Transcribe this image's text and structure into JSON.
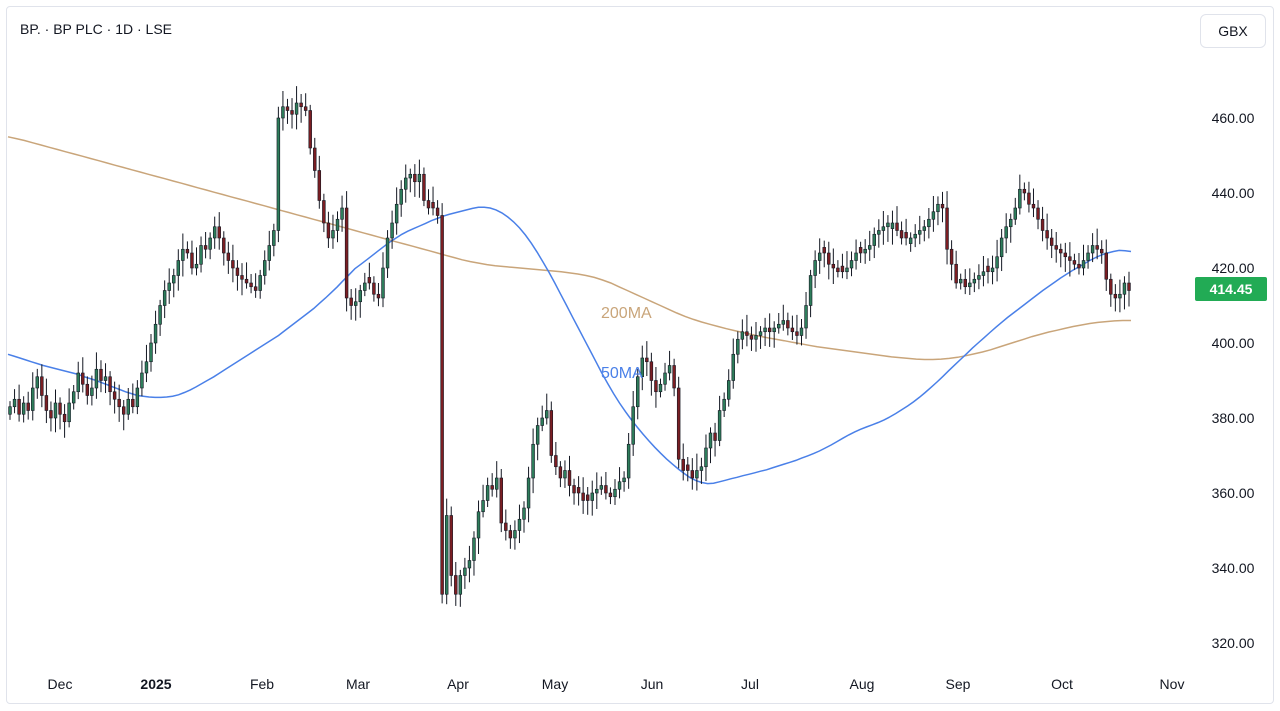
{
  "header": {
    "title": "BP. · BP PLC · 1D · LSE",
    "currency": "GBX"
  },
  "colors": {
    "up": "#2e7d5b",
    "down": "#7b1e23",
    "ma50": "#4a80e8",
    "ma200": "#c9a57a",
    "price_tag": "#22ab55",
    "text": "#131722"
  },
  "chart_data": {
    "type": "candlestick",
    "title": "BP. · BP PLC · 1D · LSE",
    "ylim": [
      315,
      470
    ],
    "y_ticks": [
      "460.00",
      "440.00",
      "420.00",
      "400.00",
      "380.00",
      "360.00",
      "340.00",
      "320.00"
    ],
    "x_ticks": [
      {
        "label": "Dec",
        "bold": false
      },
      {
        "label": "2025",
        "bold": true
      },
      {
        "label": "Feb",
        "bold": false
      },
      {
        "label": "Mar",
        "bold": false
      },
      {
        "label": "Apr",
        "bold": false
      },
      {
        "label": "May",
        "bold": false
      },
      {
        "label": "Jun",
        "bold": false
      },
      {
        "label": "Jul",
        "bold": false
      },
      {
        "label": "Aug",
        "bold": false
      },
      {
        "label": "Sep",
        "bold": false
      },
      {
        "label": "Oct",
        "bold": false
      },
      {
        "label": "Nov",
        "bold": false
      }
    ],
    "last_price": "414.45",
    "series_labels": {
      "ma50": "50MA",
      "ma200": "200MA"
    },
    "candles_close": [
      383,
      385,
      381,
      384,
      382,
      388,
      391,
      386,
      382,
      380,
      384,
      381,
      379,
      384,
      387,
      392,
      389,
      386,
      388,
      393,
      390,
      391,
      387,
      385,
      383,
      381,
      385,
      383,
      388,
      392,
      395,
      400,
      405,
      410,
      414,
      416,
      418,
      422,
      425,
      424,
      420,
      421,
      426,
      425,
      428,
      431,
      428,
      424,
      422,
      420,
      418,
      417,
      416,
      415,
      414,
      418,
      422,
      426,
      430,
      460,
      463,
      462,
      461,
      464,
      463,
      462,
      452,
      446,
      438,
      432,
      428,
      430,
      433,
      436,
      412,
      410,
      411,
      414,
      416,
      416,
      413,
      412,
      420,
      428,
      432,
      437,
      441,
      444,
      445,
      443,
      445,
      438,
      436,
      436,
      434,
      333,
      354,
      338,
      333,
      338,
      340,
      342,
      348,
      355,
      358,
      362,
      361,
      364,
      352,
      350,
      348,
      350,
      353,
      356,
      364,
      373,
      378,
      380,
      382,
      370,
      367,
      364,
      366,
      362,
      360,
      360,
      358,
      358,
      360,
      361,
      362,
      360,
      359,
      361,
      363,
      364,
      373,
      383,
      391,
      396,
      395,
      390,
      387,
      389,
      392,
      394,
      388,
      369,
      366,
      366,
      364,
      366,
      367,
      372,
      376,
      374,
      382,
      385,
      390,
      397,
      401,
      403,
      402,
      401,
      402,
      403,
      404,
      403,
      404,
      405,
      406,
      404,
      403,
      402,
      404,
      410,
      418,
      422,
      424,
      424,
      421,
      420,
      419,
      419,
      420,
      422,
      424,
      424,
      425,
      426,
      429,
      430,
      431,
      432,
      432,
      430,
      428,
      428,
      428,
      429,
      430,
      431,
      433,
      435,
      437,
      436,
      425,
      421,
      416,
      417,
      415,
      416,
      417,
      418,
      419,
      419,
      420,
      423,
      428,
      431,
      433,
      436,
      441,
      440,
      437,
      436,
      433,
      430,
      428,
      426,
      425,
      424,
      423,
      422,
      421,
      420,
      422,
      424,
      426,
      425,
      424,
      417,
      413,
      412,
      413,
      416,
      414
    ],
    "ma50": [
      397,
      396.5,
      396,
      395.5,
      395,
      394.5,
      394,
      393.6,
      393.2,
      392.8,
      392.4,
      392,
      391.6,
      391,
      390.5,
      390,
      389.4,
      388.8,
      388.2,
      387.6,
      387,
      386.5,
      386,
      385.8,
      385.6,
      385.5,
      385.5,
      385.6,
      385.8,
      386.2,
      386.8,
      387.5,
      388.3,
      389.2,
      390.1,
      391,
      392,
      393,
      394,
      395,
      396,
      397,
      398,
      399,
      400,
      401,
      402,
      403.2,
      404.4,
      405.6,
      406.8,
      408,
      409.2,
      410.6,
      412,
      413.5,
      415,
      416.6,
      418.2,
      419.8,
      421,
      422.2,
      423.4,
      424.6,
      425.8,
      427,
      428,
      429,
      429.8,
      430.5,
      431.2,
      431.9,
      432.6,
      433.2,
      433.8,
      434.3,
      434.7,
      435.1,
      435.5,
      435.9,
      436.2,
      436.2,
      436,
      435.5,
      434.7,
      433.6,
      432.3,
      430.7,
      428.8,
      426.6,
      424.2,
      421.6,
      418.9,
      416,
      413,
      410,
      407,
      404,
      401,
      398,
      395,
      392,
      389.2,
      386.5,
      384,
      381.7,
      379.6,
      377.6,
      375.7,
      373.9,
      372.2,
      370.6,
      369.1,
      367.7,
      366.4,
      365.2,
      364.1,
      363.3,
      362.8,
      362.5,
      362.6,
      363,
      363.4,
      363.8,
      364.2,
      364.6,
      365,
      365.4,
      365.8,
      366.2,
      366.7,
      367.2,
      367.7,
      368.2,
      368.7,
      369.3,
      369.9,
      370.5,
      371.2,
      372,
      372.8,
      373.7,
      374.6,
      375.5,
      376.3,
      377,
      377.6,
      378.2,
      378.8,
      379.5,
      380.3,
      381.2,
      382.2,
      383.2,
      384.3,
      385.5,
      386.8,
      388.2,
      389.6,
      391.1,
      392.6,
      394.1,
      395.6,
      397.1,
      398.6,
      400,
      401.4,
      402.8,
      404.2,
      405.5,
      406.8,
      408,
      409.2,
      410.4,
      411.6,
      412.8,
      414,
      415.1,
      416.2,
      417.3,
      418.3,
      419.3,
      420.2,
      421.1,
      422,
      422.8,
      423.5,
      424,
      424.4,
      424.7,
      424.6,
      424.4
    ],
    "ma200": [
      455,
      454.5,
      454,
      453.4,
      452.8,
      452.2,
      451.6,
      451,
      450.4,
      449.8,
      449.2,
      448.6,
      448,
      447.4,
      446.8,
      446.2,
      445.6,
      445,
      444.4,
      443.8,
      443.2,
      442.6,
      442,
      441.4,
      440.8,
      440.2,
      439.6,
      439,
      438.4,
      437.8,
      437.2,
      436.6,
      436,
      435.4,
      434.8,
      434.2,
      433.6,
      433,
      432.4,
      431.8,
      431.2,
      430.6,
      430,
      429.4,
      428.8,
      428.2,
      427.6,
      427,
      426.4,
      425.8,
      425.2,
      424.6,
      424,
      423.4,
      422.8,
      422.2,
      421.7,
      421.3,
      420.9,
      420.6,
      420.4,
      420.2,
      420,
      419.8,
      419.6,
      419.4,
      419.2,
      419,
      418.7,
      418.4,
      418,
      417.5,
      416.8,
      416,
      415,
      414,
      413,
      412,
      411,
      410,
      409,
      408,
      407.1,
      406.3,
      405.6,
      405,
      404.4,
      403.8,
      403.3,
      402.8,
      402.3,
      401.8,
      401.4,
      401,
      400.6,
      400.2,
      399.8,
      399.4,
      399,
      398.7,
      398.4,
      398.1,
      397.8,
      397.5,
      397.2,
      396.9,
      396.6,
      396.3,
      396.1,
      395.9,
      395.7,
      395.6,
      395.6,
      395.7,
      395.9,
      396.2,
      396.6,
      397.1,
      397.6,
      398.2,
      398.9,
      399.6,
      400.3,
      401,
      401.7,
      402.3,
      402.9,
      403.4,
      403.9,
      404.4,
      404.8,
      405.2,
      405.5,
      405.7,
      405.9,
      406,
      406
    ]
  }
}
